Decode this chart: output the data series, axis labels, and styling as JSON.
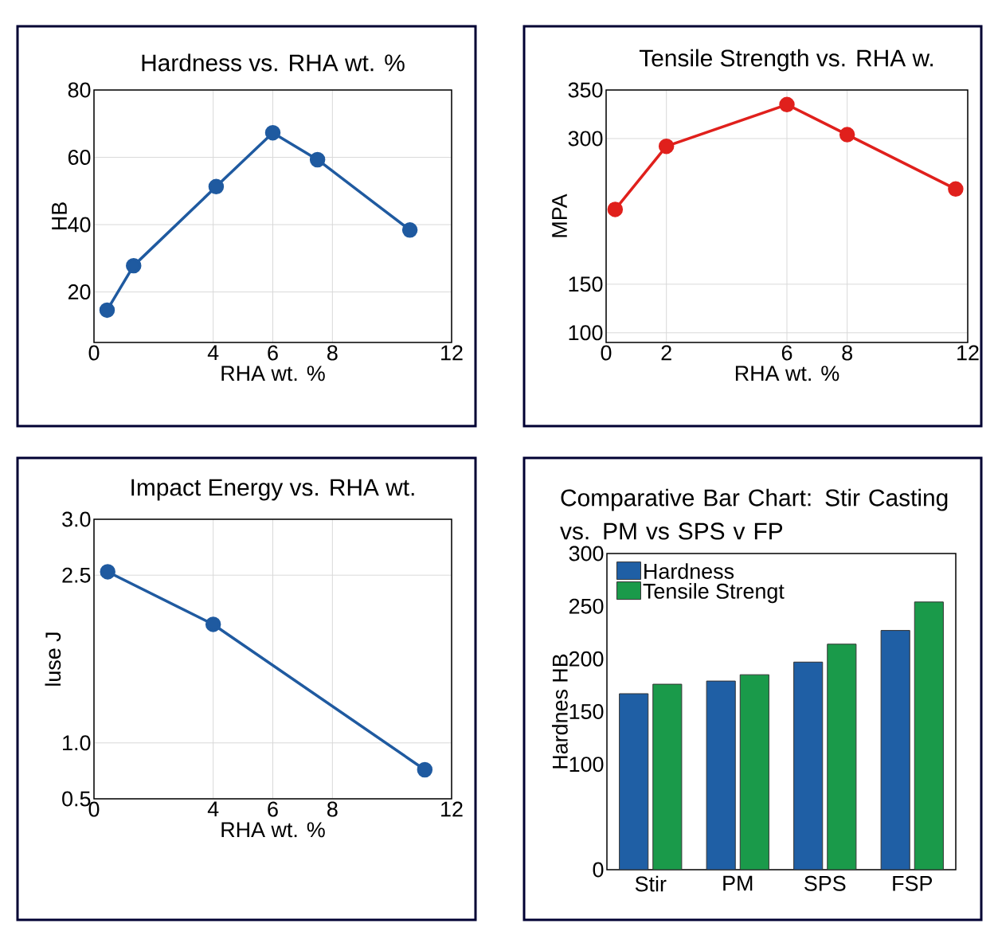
{
  "chart_data": [
    {
      "type": "line",
      "title": "Hardness vs. RHA wt. %",
      "xlabel": "RHA wt. %",
      "ylabel": "HB",
      "x": [
        0.44,
        1.33,
        4.1,
        6,
        7.5,
        10.6
      ],
      "values": [
        14.6,
        27.8,
        51.3,
        67.3,
        59.3,
        38.4
      ],
      "color": "#1f5aa0",
      "xlim": [
        0,
        12
      ],
      "xticks": [
        0,
        4,
        6,
        8,
        12
      ],
      "ylim": [
        5,
        80
      ],
      "yticks": [
        20,
        40,
        60,
        80
      ],
      "grid": true,
      "marker": "circle"
    },
    {
      "type": "line",
      "title": "Tensile Strength vs. RHA w.",
      "xlabel": "RHA wt. %",
      "ylabel": "MPA",
      "x": [
        0.3,
        2,
        6,
        8,
        11.6
      ],
      "values": [
        227,
        292,
        335,
        304,
        248
      ],
      "color": "#e0201c",
      "xlim": [
        0,
        12
      ],
      "xticks": [
        0,
        2,
        6,
        8,
        12
      ],
      "ylim": [
        90,
        350
      ],
      "yticks": [
        100,
        150,
        300,
        350
      ],
      "grid": true,
      "marker": "circle"
    },
    {
      "type": "line",
      "title": "Impact Energy vs. RHA wt.",
      "xlabel": "RHA wt. %",
      "ylabel": "luse J",
      "x": [
        0.46,
        4,
        11.1
      ],
      "values": [
        2.53,
        2.06,
        0.76
      ],
      "color": "#1f5aa0",
      "xlim": [
        0,
        12
      ],
      "xticks": [
        0,
        4,
        6,
        8,
        12
      ],
      "ylim": [
        0.5,
        3
      ],
      "yticks": [
        0.5,
        {
          "value": 1,
          "label": "1.0"
        },
        2.5,
        {
          "value": 3,
          "label": "3.0"
        }
      ],
      "grid": true,
      "marker": "circle"
    },
    {
      "type": "bar",
      "title": "Comparative Bar Chart: Stir Casting vs. PM vs SPS v FP",
      "ylabel": "Hardnes HB",
      "categories": [
        "Stir",
        "PM",
        "SPS",
        "FSP"
      ],
      "series": [
        {
          "name": "Hardness",
          "color": "#1f5fa5",
          "values": [
            167,
            179,
            197,
            227
          ]
        },
        {
          "name": "Tensile Strengt",
          "color": "#1a9a4a",
          "values": [
            176,
            185,
            214,
            254
          ]
        }
      ],
      "ylim": [
        0,
        300
      ],
      "yticks": [
        0,
        100,
        150,
        200,
        250,
        300
      ],
      "legend": "top left"
    }
  ]
}
